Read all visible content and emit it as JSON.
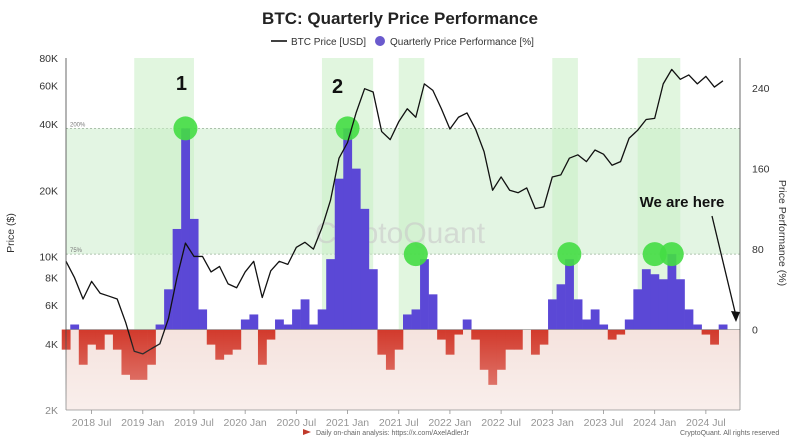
{
  "chart_data": {
    "type": "line+area",
    "title": "BTC: Quarterly Price Performance",
    "legend": [
      {
        "label": "BTC Price [USD]",
        "color": "#111111",
        "shape": "line"
      },
      {
        "label": "Quarterly Price Performance [%]",
        "color": "#6a5acd",
        "shape": "dot"
      }
    ],
    "legend_placement": "top-center",
    "ylabel_left": "Price ($)",
    "ylabel_right": "Price Performance (%)",
    "x_ticks": [
      "2018 Jul",
      "2019 Jan",
      "2019 Jul",
      "2020 Jan",
      "2020 Jul",
      "2021 Jan",
      "2021 Jul",
      "2022 Jan",
      "2022 Jul",
      "2023 Jan",
      "2023 Jul",
      "2024 Jan",
      "2024 Jul"
    ],
    "y_left_ticks": [
      "80K",
      "60K",
      "40K",
      "20K",
      "10K",
      "8K",
      "6K",
      "4K",
      "2K"
    ],
    "y_right_ticks": [
      "240",
      "160",
      "80",
      "0"
    ],
    "y_left_scale": "log",
    "y_left_range": [
      2000,
      80000
    ],
    "y_right_range": [
      -80,
      270
    ],
    "bands": [
      {
        "label": "200%",
        "value": 200
      },
      {
        "label": "75%",
        "value": 75
      }
    ],
    "price_series": {
      "name": "BTC Price [USD]",
      "x": [
        "2018-04",
        "2018-05",
        "2018-06",
        "2018-07",
        "2018-08",
        "2018-09",
        "2018-10",
        "2018-11",
        "2018-12",
        "2019-01",
        "2019-02",
        "2019-03",
        "2019-04",
        "2019-05",
        "2019-06",
        "2019-07",
        "2019-08",
        "2019-09",
        "2019-10",
        "2019-11",
        "2019-12",
        "2020-01",
        "2020-02",
        "2020-03",
        "2020-04",
        "2020-05",
        "2020-06",
        "2020-07",
        "2020-08",
        "2020-09",
        "2020-10",
        "2020-11",
        "2020-12",
        "2021-01",
        "2021-02",
        "2021-03",
        "2021-04",
        "2021-05",
        "2021-06",
        "2021-07",
        "2021-08",
        "2021-09",
        "2021-10",
        "2021-11",
        "2021-12",
        "2022-01",
        "2022-02",
        "2022-03",
        "2022-04",
        "2022-05",
        "2022-06",
        "2022-07",
        "2022-08",
        "2022-09",
        "2022-10",
        "2022-11",
        "2022-12",
        "2023-01",
        "2023-02",
        "2023-03",
        "2023-04",
        "2023-05",
        "2023-06",
        "2023-07",
        "2023-08",
        "2023-09",
        "2023-10",
        "2023-11",
        "2023-12",
        "2024-01",
        "2024-02",
        "2024-03",
        "2024-04",
        "2024-05",
        "2024-06",
        "2024-07",
        "2024-08",
        "2024-09"
      ],
      "values": [
        9500,
        8000,
        6400,
        7700,
        6800,
        6600,
        6400,
        5000,
        3700,
        3600,
        3800,
        4000,
        5200,
        8000,
        11500,
        10000,
        10000,
        8500,
        9000,
        7500,
        7200,
        8500,
        9500,
        6500,
        8600,
        9500,
        9200,
        11000,
        11600,
        10800,
        13500,
        18000,
        28000,
        33000,
        45000,
        58000,
        56000,
        37000,
        34000,
        41000,
        47000,
        43000,
        61000,
        57000,
        47000,
        38000,
        43000,
        45000,
        38000,
        30000,
        20000,
        23000,
        20000,
        19500,
        20500,
        16500,
        16800,
        23000,
        23500,
        28000,
        29000,
        27000,
        30500,
        29200,
        26000,
        27000,
        34500,
        37500,
        42000,
        42500,
        61000,
        71000,
        64000,
        67000,
        61000,
        66000,
        59000,
        63000
      ]
    },
    "performance_series": {
      "name": "Quarterly Price Performance [%]",
      "x": [
        "2018-04",
        "2018-05",
        "2018-06",
        "2018-07",
        "2018-08",
        "2018-09",
        "2018-10",
        "2018-11",
        "2018-12",
        "2019-01",
        "2019-02",
        "2019-03",
        "2019-04",
        "2019-05",
        "2019-06",
        "2019-07",
        "2019-08",
        "2019-09",
        "2019-10",
        "2019-11",
        "2019-12",
        "2020-01",
        "2020-02",
        "2020-03",
        "2020-04",
        "2020-05",
        "2020-06",
        "2020-07",
        "2020-08",
        "2020-09",
        "2020-10",
        "2020-11",
        "2020-12",
        "2021-01",
        "2021-02",
        "2021-03",
        "2021-04",
        "2021-05",
        "2021-06",
        "2021-07",
        "2021-08",
        "2021-09",
        "2021-10",
        "2021-11",
        "2021-12",
        "2022-01",
        "2022-02",
        "2022-03",
        "2022-04",
        "2022-05",
        "2022-06",
        "2022-07",
        "2022-08",
        "2022-09",
        "2022-10",
        "2022-11",
        "2022-12",
        "2023-01",
        "2023-02",
        "2023-03",
        "2023-04",
        "2023-05",
        "2023-06",
        "2023-07",
        "2023-08",
        "2023-09",
        "2023-10",
        "2023-11",
        "2023-12",
        "2024-01",
        "2024-02",
        "2024-03",
        "2024-04",
        "2024-05",
        "2024-06",
        "2024-07",
        "2024-08",
        "2024-09"
      ],
      "values": [
        -20,
        5,
        -35,
        -15,
        -20,
        -5,
        -20,
        -45,
        -50,
        -50,
        -35,
        5,
        40,
        100,
        200,
        110,
        20,
        -15,
        -30,
        -25,
        -20,
        10,
        15,
        -35,
        -10,
        10,
        5,
        20,
        30,
        5,
        20,
        70,
        150,
        200,
        160,
        120,
        60,
        -25,
        -40,
        -20,
        15,
        20,
        70,
        35,
        -10,
        -25,
        -5,
        10,
        -10,
        -40,
        -55,
        -40,
        -20,
        -20,
        0,
        -25,
        -15,
        30,
        45,
        70,
        30,
        10,
        20,
        5,
        -10,
        -5,
        10,
        40,
        60,
        55,
        50,
        75,
        50,
        20,
        5,
        -5,
        -15,
        5
      ]
    },
    "annotations": [
      {
        "text": "1",
        "x": "2019-06"
      },
      {
        "text": "2",
        "x": "2021-01"
      },
      {
        "text": "We are here",
        "x": "2024-09"
      }
    ],
    "watermark": "CryptoQuant",
    "footer_left": "Daily on-chain analysis: https://x.com/AxelAdlerJr",
    "footer_right": "CryptoQuant. All rights reserved",
    "grid": false
  }
}
